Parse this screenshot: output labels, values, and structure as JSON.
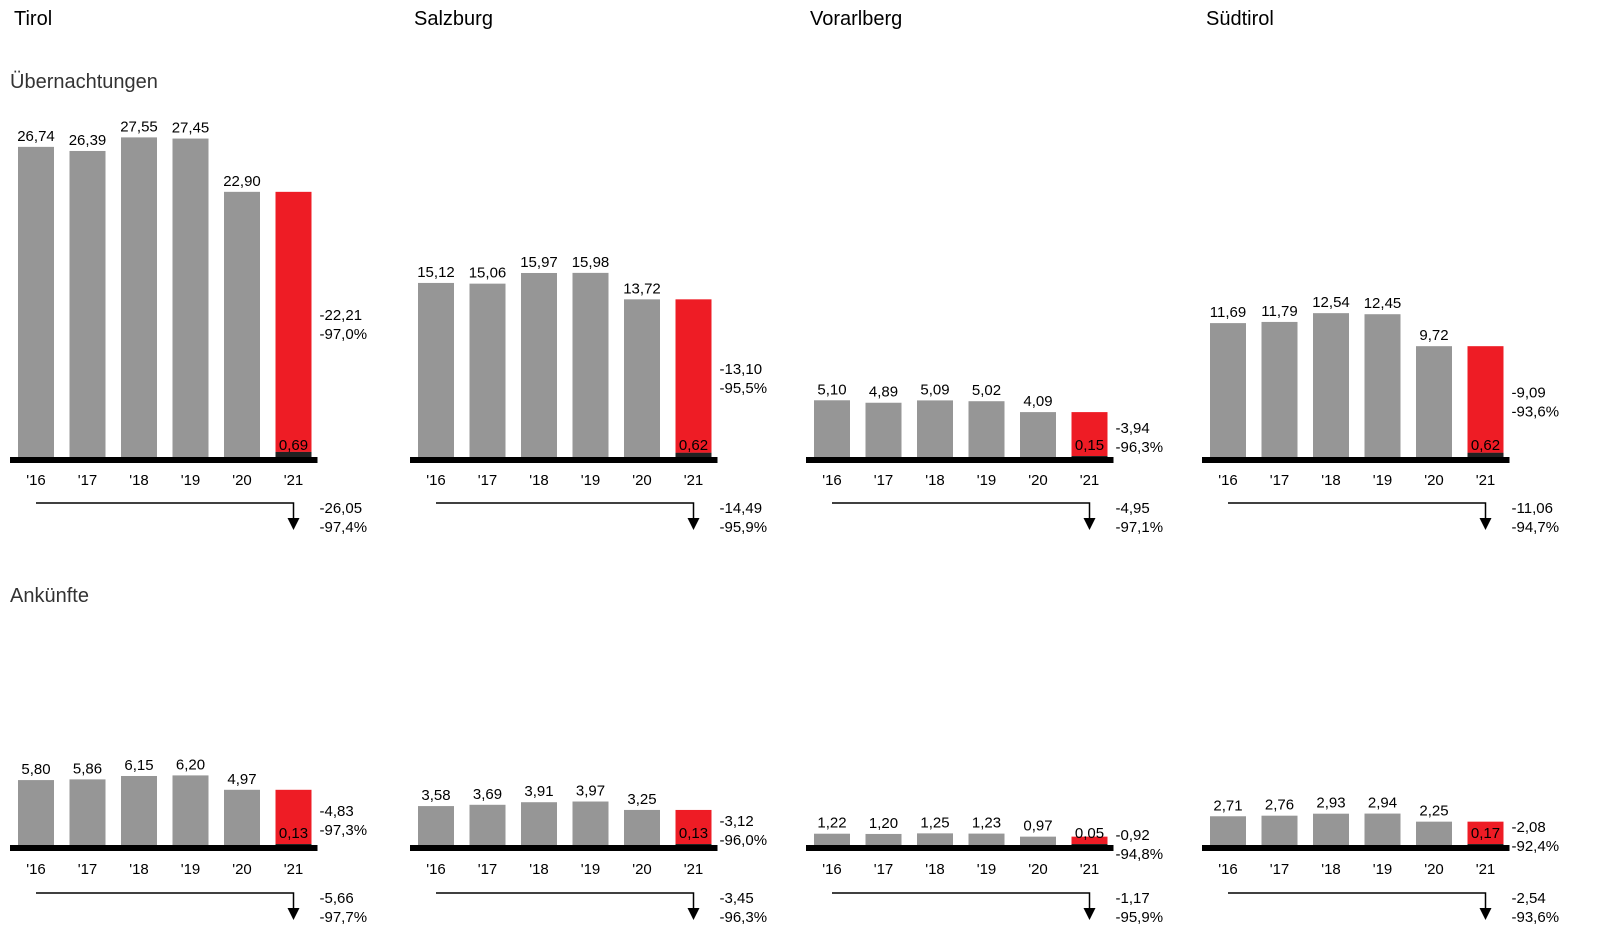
{
  "regions": [
    "Tirol",
    "Salzburg",
    "Vorarlberg",
    "Südtirol"
  ],
  "section_titles": {
    "overnight": "Übernachtungen",
    "arrivals": "Ankünfte"
  },
  "colors": {
    "bar": "#969696",
    "highlight": "#ee1c25",
    "axis": "#000000"
  },
  "chart_data": [
    {
      "type": "bar",
      "section": "Übernachtungen",
      "region": "Tirol",
      "categories": [
        "'16",
        "'17",
        "'18",
        "'19",
        "'20",
        "'21"
      ],
      "values": [
        26.74,
        26.39,
        27.55,
        27.45,
        22.9,
        0.69
      ],
      "value_labels": [
        "26,74",
        "26,39",
        "27,55",
        "27,45",
        "22,90",
        "0,69"
      ],
      "change_last_vs_prev": [
        "-22,21",
        "-97,0%"
      ],
      "change_last_vs_first": [
        "-26,05",
        "-97,4%"
      ]
    },
    {
      "type": "bar",
      "section": "Übernachtungen",
      "region": "Salzburg",
      "categories": [
        "'16",
        "'17",
        "'18",
        "'19",
        "'20",
        "'21"
      ],
      "values": [
        15.12,
        15.06,
        15.97,
        15.98,
        13.72,
        0.62
      ],
      "value_labels": [
        "15,12",
        "15,06",
        "15,97",
        "15,98",
        "13,72",
        "0,62"
      ],
      "change_last_vs_prev": [
        "-13,10",
        "-95,5%"
      ],
      "change_last_vs_first": [
        "-14,49",
        "-95,9%"
      ]
    },
    {
      "type": "bar",
      "section": "Übernachtungen",
      "region": "Vorarlberg",
      "categories": [
        "'16",
        "'17",
        "'18",
        "'19",
        "'20",
        "'21"
      ],
      "values": [
        5.1,
        4.89,
        5.09,
        5.02,
        4.09,
        0.15
      ],
      "value_labels": [
        "5,10",
        "4,89",
        "5,09",
        "5,02",
        "4,09",
        "0,15"
      ],
      "change_last_vs_prev": [
        "-3,94",
        "-96,3%"
      ],
      "change_last_vs_first": [
        "-4,95",
        "-97,1%"
      ]
    },
    {
      "type": "bar",
      "section": "Übernachtungen",
      "region": "Südtirol",
      "categories": [
        "'16",
        "'17",
        "'18",
        "'19",
        "'20",
        "'21"
      ],
      "values": [
        11.69,
        11.79,
        12.54,
        12.45,
        9.72,
        0.62
      ],
      "value_labels": [
        "11,69",
        "11,79",
        "12,54",
        "12,45",
        "9,72",
        "0,62"
      ],
      "change_last_vs_prev": [
        "-9,09",
        "-93,6%"
      ],
      "change_last_vs_first": [
        "-11,06",
        "-94,7%"
      ]
    },
    {
      "type": "bar",
      "section": "Ankünfte",
      "region": "Tirol",
      "categories": [
        "'16",
        "'17",
        "'18",
        "'19",
        "'20",
        "'21"
      ],
      "values": [
        5.8,
        5.86,
        6.15,
        6.2,
        4.97,
        0.13
      ],
      "value_labels": [
        "5,80",
        "5,86",
        "6,15",
        "6,20",
        "4,97",
        "0,13"
      ],
      "change_last_vs_prev": [
        "-4,83",
        "-97,3%"
      ],
      "change_last_vs_first": [
        "-5,66",
        "-97,7%"
      ]
    },
    {
      "type": "bar",
      "section": "Ankünfte",
      "region": "Salzburg",
      "categories": [
        "'16",
        "'17",
        "'18",
        "'19",
        "'20",
        "'21"
      ],
      "values": [
        3.58,
        3.69,
        3.91,
        3.97,
        3.25,
        0.13
      ],
      "value_labels": [
        "3,58",
        "3,69",
        "3,91",
        "3,97",
        "3,25",
        "0,13"
      ],
      "change_last_vs_prev": [
        "-3,12",
        "-96,0%"
      ],
      "change_last_vs_first": [
        "-3,45",
        "-96,3%"
      ]
    },
    {
      "type": "bar",
      "section": "Ankünfte",
      "region": "Vorarlberg",
      "categories": [
        "'16",
        "'17",
        "'18",
        "'19",
        "'20",
        "'21"
      ],
      "values": [
        1.22,
        1.2,
        1.25,
        1.23,
        0.97,
        0.05
      ],
      "value_labels": [
        "1,22",
        "1,20",
        "1,25",
        "1,23",
        "0,97",
        "0,05"
      ],
      "change_last_vs_prev": [
        "-0,92",
        "-94,8%"
      ],
      "change_last_vs_first": [
        "-1,17",
        "-95,9%"
      ]
    },
    {
      "type": "bar",
      "section": "Ankünfte",
      "region": "Südtirol",
      "categories": [
        "'16",
        "'17",
        "'18",
        "'19",
        "'20",
        "'21"
      ],
      "values": [
        2.71,
        2.76,
        2.93,
        2.94,
        2.25,
        0.17
      ],
      "value_labels": [
        "2,71",
        "2,76",
        "2,93",
        "2,94",
        "2,25",
        "0,17"
      ],
      "change_last_vs_prev": [
        "-2,08",
        "-92,4%"
      ],
      "change_last_vs_first": [
        "-2,54",
        "-93,6%"
      ]
    }
  ]
}
